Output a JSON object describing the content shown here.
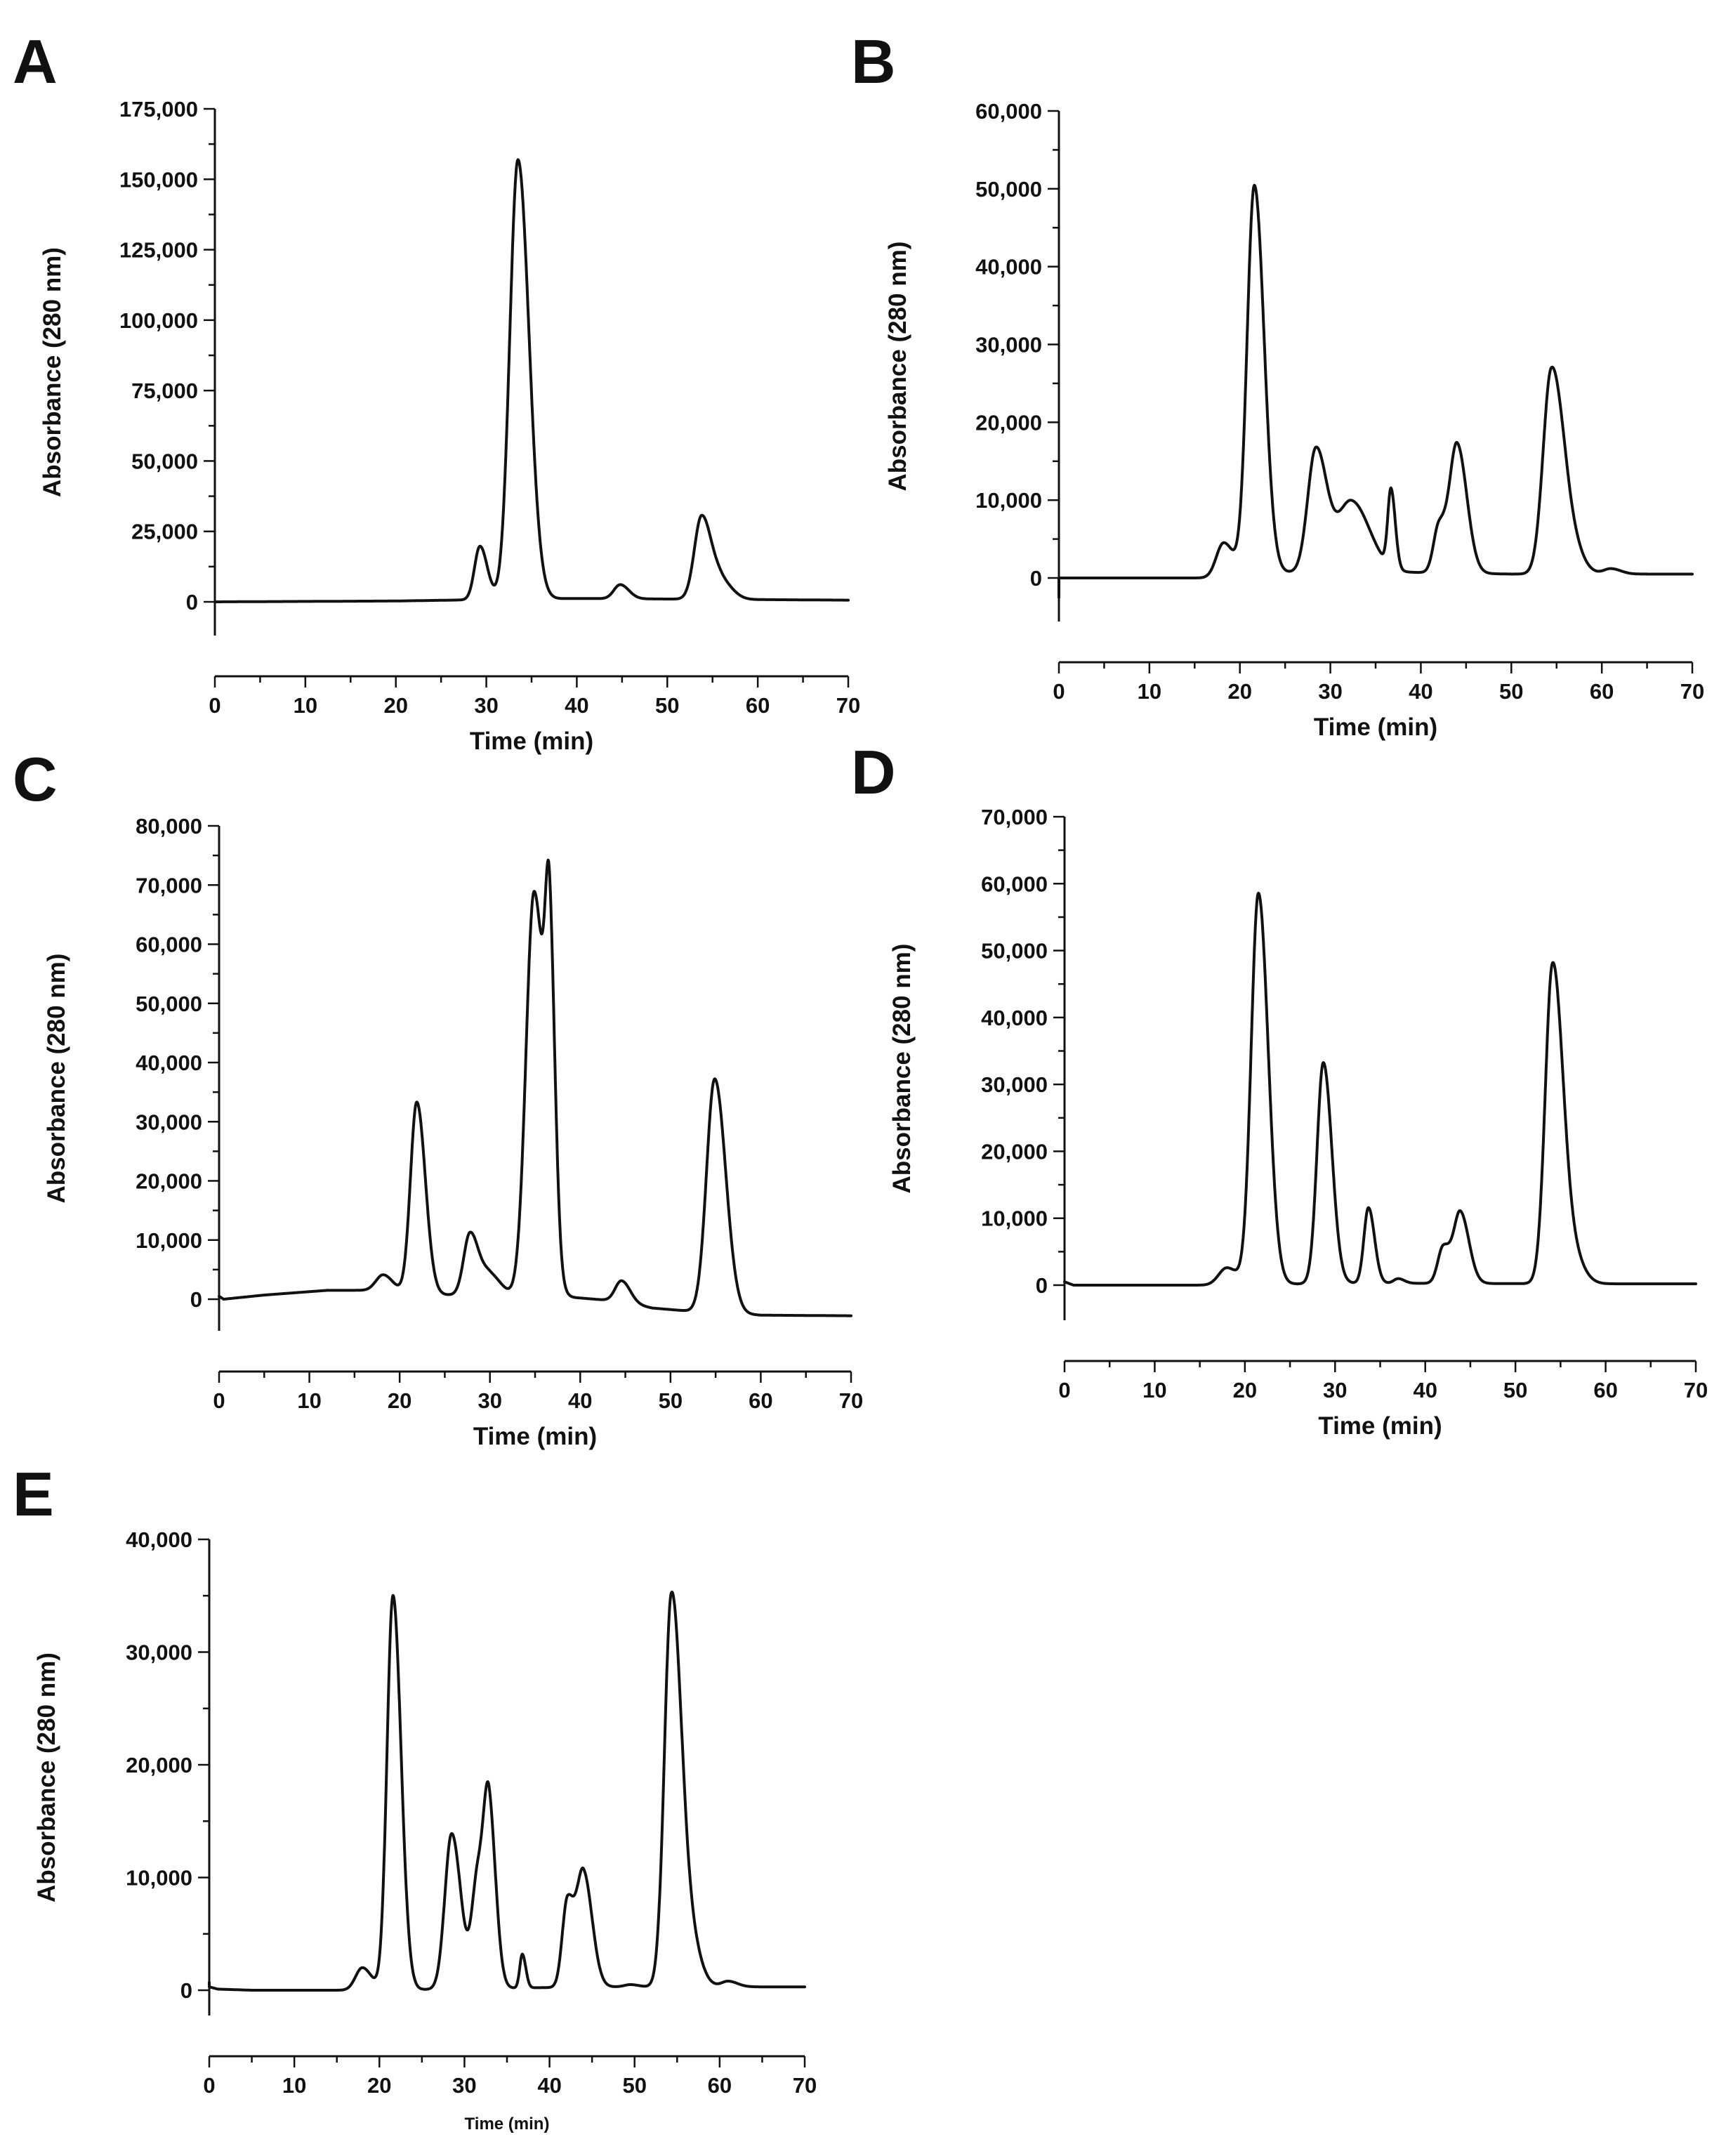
{
  "chart_data": [
    {
      "panel": "A",
      "type": "line",
      "xlabel": "Time (min)",
      "ylabel": "Absorbance (280 nm)",
      "xlim": [
        0,
        70
      ],
      "ylim": [
        -8000,
        175000
      ],
      "xticks": [
        0,
        10,
        20,
        30,
        40,
        50,
        60,
        70
      ],
      "yticks": [
        0,
        25000,
        50000,
        75000,
        100000,
        125000,
        150000,
        175000
      ],
      "ytick_labels": [
        "0",
        "25,000",
        "50,000",
        "75,000",
        "100,000",
        "125,000",
        "150,000",
        "175,000"
      ],
      "baseline": [
        [
          0,
          0
        ],
        [
          20,
          300
        ],
        [
          30,
          800
        ],
        [
          40,
          1200
        ],
        [
          60,
          800
        ],
        [
          70,
          600
        ]
      ],
      "peaks": [
        {
          "x": 29.3,
          "y": 19000,
          "width": 0.6
        },
        {
          "x": 33.5,
          "y": 156000,
          "width": 0.9
        },
        {
          "x": 44.8,
          "y": 5000,
          "width": 0.7
        },
        {
          "x": 53.8,
          "y": 29500,
          "width": 0.8
        },
        {
          "x": 56.0,
          "y": 6000,
          "width": 0.9
        }
      ]
    },
    {
      "panel": "B",
      "type": "line",
      "xlabel": "Time (min)",
      "ylabel": "Absorbance (280 nm)",
      "xlim": [
        0,
        70
      ],
      "ylim": [
        -5000,
        60000
      ],
      "xticks": [
        0,
        10,
        20,
        30,
        40,
        50,
        60,
        70
      ],
      "yticks": [
        0,
        10000,
        20000,
        30000,
        40000,
        50000,
        60000
      ],
      "ytick_labels": [
        "0",
        "10,000",
        "20,000",
        "30,000",
        "40,000",
        "50,000",
        "60,000"
      ],
      "start_spike": -2500,
      "baseline": [
        [
          0,
          0
        ],
        [
          18,
          0
        ],
        [
          24,
          700
        ],
        [
          40,
          700
        ],
        [
          50,
          500
        ],
        [
          70,
          500
        ]
      ],
      "peaks": [
        {
          "x": 18.2,
          "y": 4500,
          "width": 0.8
        },
        {
          "x": 21.6,
          "y": 50000,
          "width": 0.8
        },
        {
          "x": 28.4,
          "y": 15800,
          "width": 0.9
        },
        {
          "x": 32.3,
          "y": 9200,
          "width": 1.5
        },
        {
          "x": 36.7,
          "y": 10000,
          "width": 0.35
        },
        {
          "x": 42.0,
          "y": 6000,
          "width": 0.6
        },
        {
          "x": 44.0,
          "y": 16500,
          "width": 0.8
        },
        {
          "x": 54.4,
          "y": 25500,
          "width": 0.9
        },
        {
          "x": 56.2,
          "y": 5000,
          "width": 1.0
        },
        {
          "x": 61.0,
          "y": 700,
          "width": 0.8
        }
      ]
    },
    {
      "panel": "C",
      "type": "line",
      "xlabel": "Time (min)",
      "ylabel": "Absorbance (280 nm)",
      "xlim": [
        0,
        70
      ],
      "ylim": [
        -5000,
        80000
      ],
      "xticks": [
        0,
        10,
        20,
        30,
        40,
        50,
        60,
        70
      ],
      "yticks": [
        0,
        10000,
        20000,
        30000,
        40000,
        50000,
        60000,
        70000,
        80000
      ],
      "ytick_labels": [
        "0",
        "10,000",
        "20,000",
        "30,000",
        "40,000",
        "50,000",
        "60,000",
        "70,000",
        "80,000"
      ],
      "baseline": [
        [
          0,
          500
        ],
        [
          0.5,
          0
        ],
        [
          5,
          700
        ],
        [
          12,
          1500
        ],
        [
          17,
          1500
        ],
        [
          22,
          800
        ],
        [
          30,
          600
        ],
        [
          40,
          200
        ],
        [
          44,
          -300
        ],
        [
          48,
          -1500
        ],
        [
          52,
          -2000
        ],
        [
          60,
          -2700
        ],
        [
          70,
          -2800
        ]
      ],
      "peaks": [
        {
          "x": 18.2,
          "y": 2800,
          "width": 0.8
        },
        {
          "x": 21.9,
          "y": 32500,
          "width": 0.7
        },
        {
          "x": 27.8,
          "y": 10500,
          "width": 0.7
        },
        {
          "x": 30.0,
          "y": 3500,
          "width": 0.9
        },
        {
          "x": 34.9,
          "y": 68500,
          "width": 0.9
        },
        {
          "x": 36.6,
          "y": 46000,
          "width": 0.45
        },
        {
          "x": 44.6,
          "y": 3600,
          "width": 0.7
        },
        {
          "x": 54.9,
          "y": 39500,
          "width": 0.9
        }
      ]
    },
    {
      "panel": "D",
      "type": "line",
      "xlabel": "Time (min)",
      "ylabel": "Absorbance (280 nm)",
      "xlim": [
        0,
        70
      ],
      "ylim": [
        -5000,
        70000
      ],
      "xticks": [
        0,
        10,
        20,
        30,
        40,
        50,
        60,
        70
      ],
      "yticks": [
        0,
        10000,
        20000,
        30000,
        40000,
        50000,
        60000,
        70000
      ],
      "ytick_labels": [
        "0",
        "10,000",
        "20,000",
        "30,000",
        "40,000",
        "50,000",
        "60,000",
        "70,000"
      ],
      "baseline": [
        [
          0,
          500
        ],
        [
          1,
          0
        ],
        [
          20,
          0
        ],
        [
          30,
          300
        ],
        [
          60,
          200
        ],
        [
          70,
          200
        ]
      ],
      "peaks": [
        {
          "x": 18.0,
          "y": 2600,
          "width": 0.9
        },
        {
          "x": 21.5,
          "y": 58500,
          "width": 0.8
        },
        {
          "x": 28.7,
          "y": 33000,
          "width": 0.7
        },
        {
          "x": 33.7,
          "y": 11300,
          "width": 0.5
        },
        {
          "x": 37.0,
          "y": 700,
          "width": 0.5
        },
        {
          "x": 42.0,
          "y": 5500,
          "width": 0.6
        },
        {
          "x": 43.9,
          "y": 10500,
          "width": 0.7
        },
        {
          "x": 54.1,
          "y": 46500,
          "width": 0.8
        },
        {
          "x": 55.8,
          "y": 6000,
          "width": 1.0
        }
      ]
    },
    {
      "panel": "E",
      "type": "line",
      "xlabel": "Time (min)",
      "ylabel": "Absorbance (280 nm)",
      "xlim": [
        0,
        70
      ],
      "ylim": [
        -2000,
        40000
      ],
      "xticks": [
        0,
        10,
        20,
        30,
        40,
        50,
        60,
        70
      ],
      "yticks": [
        0,
        10000,
        20000,
        30000,
        40000
      ],
      "ytick_labels": [
        "0",
        "10,000",
        "20,000",
        "30,000",
        "40,000"
      ],
      "baseline": [
        [
          0,
          300
        ],
        [
          1,
          100
        ],
        [
          5,
          0
        ],
        [
          20,
          0
        ],
        [
          45,
          300
        ],
        [
          60,
          300
        ],
        [
          70,
          300
        ]
      ],
      "start_spike": 700,
      "peaks": [
        {
          "x": 18.0,
          "y": 2000,
          "width": 0.8
        },
        {
          "x": 21.6,
          "y": 35000,
          "width": 0.7
        },
        {
          "x": 28.5,
          "y": 13800,
          "width": 0.8
        },
        {
          "x": 31.6,
          "y": 10000,
          "width": 0.7
        },
        {
          "x": 32.9,
          "y": 14000,
          "width": 0.6
        },
        {
          "x": 36.8,
          "y": 3000,
          "width": 0.3
        },
        {
          "x": 42.1,
          "y": 7700,
          "width": 0.6
        },
        {
          "x": 44.0,
          "y": 10000,
          "width": 0.75
        },
        {
          "x": 49.5,
          "y": 200,
          "width": 0.7
        },
        {
          "x": 54.3,
          "y": 33500,
          "width": 0.8
        },
        {
          "x": 56.0,
          "y": 6000,
          "width": 1.0
        },
        {
          "x": 61.0,
          "y": 500,
          "width": 0.8
        }
      ]
    }
  ]
}
